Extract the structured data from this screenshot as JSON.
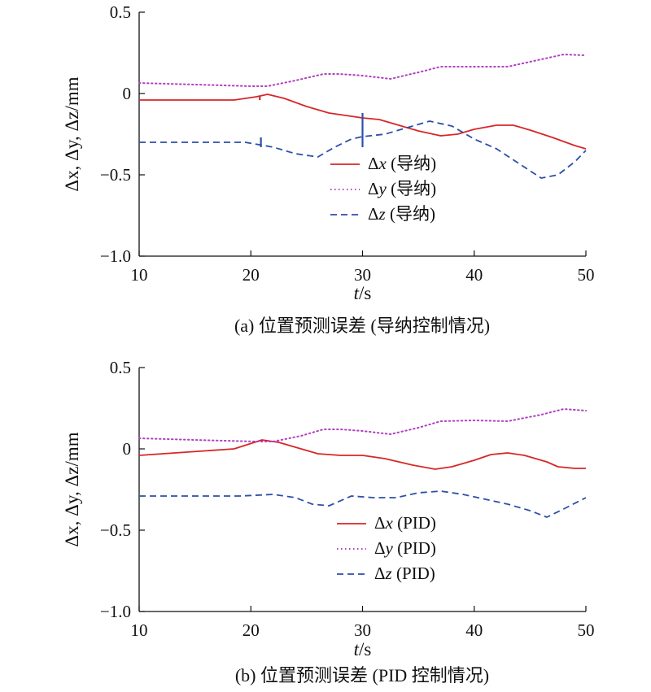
{
  "chart_data": [
    {
      "type": "line",
      "caption": "(a) 位置预测误差 (导纳控制情况)",
      "xlabel_var": "t",
      "xlabel_unit": "/s",
      "ylabel": "Δx, Δy, Δz/mm",
      "xlim": [
        10,
        50
      ],
      "ylim": [
        -1.0,
        0.5
      ],
      "xticks": [
        10,
        20,
        30,
        40,
        50
      ],
      "yticks": [
        0.5,
        0,
        -0.5,
        -1.0
      ],
      "ytick_labels": [
        "0.5",
        "0",
        "−0.5",
        "−1.0"
      ],
      "grid": false,
      "legend_position": "center-right",
      "series": [
        {
          "name": "Δx (导纳)",
          "name_var": "x",
          "name_rest": " (导纳)",
          "color": "#d62728",
          "dash": "solid",
          "x": [
            10,
            18.5,
            20.5,
            21.5,
            23,
            25,
            27,
            29,
            30,
            31.5,
            33,
            35,
            37,
            38.5,
            40,
            42,
            43.5,
            45,
            47,
            49,
            50
          ],
          "y": [
            -0.04,
            -0.04,
            -0.02,
            -0.005,
            -0.03,
            -0.08,
            -0.12,
            -0.14,
            -0.15,
            -0.16,
            -0.19,
            -0.23,
            -0.26,
            -0.25,
            -0.22,
            -0.195,
            -0.195,
            -0.225,
            -0.27,
            -0.32,
            -0.34
          ]
        },
        {
          "name": "Δy (导纳)",
          "name_var": "y",
          "name_rest": " (导纳)",
          "color": "#b040c0",
          "dash": "dotted",
          "x": [
            10,
            15,
            20,
            21.5,
            24,
            26.5,
            28,
            30,
            32.5,
            35,
            37,
            40,
            43,
            46,
            48,
            50
          ],
          "y": [
            0.065,
            0.055,
            0.045,
            0.045,
            0.08,
            0.12,
            0.12,
            0.11,
            0.09,
            0.13,
            0.165,
            0.165,
            0.165,
            0.21,
            0.24,
            0.235
          ]
        },
        {
          "name": "Δz (导纳)",
          "name_var": "z",
          "name_rest": " (导纳)",
          "color": "#2c4fa8",
          "dash": "dashed",
          "x": [
            10,
            15,
            19.5,
            22,
            24,
            26,
            27.5,
            29,
            30,
            32,
            34,
            36,
            38,
            40,
            42,
            44,
            46,
            47.5,
            49,
            50
          ],
          "y": [
            -0.3,
            -0.3,
            -0.3,
            -0.33,
            -0.37,
            -0.39,
            -0.33,
            -0.28,
            -0.265,
            -0.25,
            -0.21,
            -0.17,
            -0.2,
            -0.28,
            -0.34,
            -0.43,
            -0.52,
            -0.5,
            -0.42,
            -0.35
          ]
        }
      ],
      "spikes": [
        {
          "series": 0,
          "x": 20.8,
          "y1": -0.04,
          "y2": -0.015
        },
        {
          "series": 2,
          "x": 20.9,
          "y1": -0.33,
          "y2": -0.27
        },
        {
          "series": 2,
          "x": 30.0,
          "y1": -0.33,
          "y2": -0.12
        }
      ]
    },
    {
      "type": "line",
      "caption": "(b) 位置预测误差 (PID 控制情况)",
      "xlabel_var": "t",
      "xlabel_unit": "/s",
      "ylabel": "Δx, Δy, Δz/mm",
      "xlim": [
        10,
        50
      ],
      "ylim": [
        -1.0,
        0.5
      ],
      "xticks": [
        10,
        20,
        30,
        40,
        50
      ],
      "yticks": [
        0.5,
        0,
        -0.5,
        -1.0
      ],
      "ytick_labels": [
        "0.5",
        "0",
        "−0.5",
        "−1.0"
      ],
      "grid": false,
      "legend_position": "center-right",
      "series": [
        {
          "name": "Δx (PID)",
          "name_var": "x",
          "name_rest": " (PID)",
          "color": "#d62728",
          "dash": "solid",
          "x": [
            10,
            18.5,
            21,
            22.5,
            24.5,
            26,
            28,
            30,
            32,
            34.5,
            36.5,
            38,
            40,
            41.5,
            43,
            44.5,
            46.5,
            47.5,
            49,
            50
          ],
          "y": [
            -0.04,
            0.0,
            0.055,
            0.04,
            0.0,
            -0.03,
            -0.04,
            -0.04,
            -0.06,
            -0.1,
            -0.125,
            -0.11,
            -0.07,
            -0.035,
            -0.025,
            -0.04,
            -0.08,
            -0.11,
            -0.12,
            -0.12
          ]
        },
        {
          "name": "Δy (PID)",
          "name_var": "y",
          "name_rest": " (PID)",
          "color": "#b040c0",
          "dash": "dotted",
          "x": [
            10,
            15,
            20.5,
            22,
            24.5,
            26.5,
            28,
            30,
            32.5,
            35,
            37,
            40,
            43,
            46,
            48,
            50
          ],
          "y": [
            0.065,
            0.055,
            0.045,
            0.045,
            0.08,
            0.12,
            0.12,
            0.11,
            0.09,
            0.13,
            0.17,
            0.175,
            0.17,
            0.21,
            0.245,
            0.235
          ]
        },
        {
          "name": "Δz (PID)",
          "name_var": "z",
          "name_rest": " (PID)",
          "color": "#2c4fa8",
          "dash": "dashed",
          "x": [
            10,
            15,
            19,
            22,
            24,
            25.5,
            27,
            29,
            31,
            33,
            35,
            37,
            39,
            41,
            43,
            45,
            46.5,
            48,
            50
          ],
          "y": [
            -0.29,
            -0.29,
            -0.29,
            -0.28,
            -0.3,
            -0.34,
            -0.35,
            -0.29,
            -0.3,
            -0.3,
            -0.27,
            -0.26,
            -0.28,
            -0.31,
            -0.34,
            -0.38,
            -0.42,
            -0.37,
            -0.3
          ]
        }
      ],
      "spikes": []
    }
  ]
}
